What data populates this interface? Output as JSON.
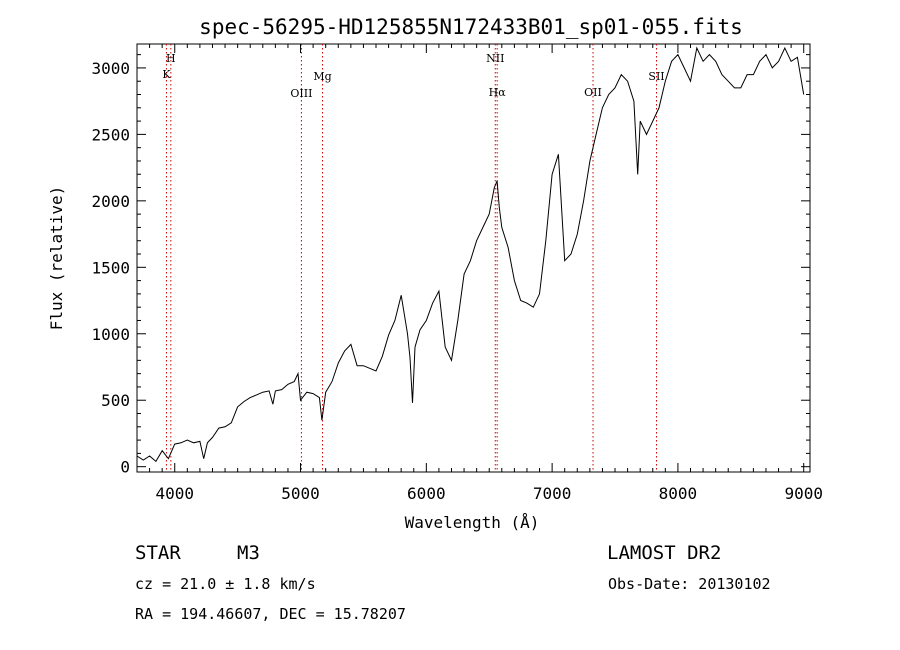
{
  "chart_data": {
    "type": "line",
    "title": "spec-56295-HD125855N172433B01_sp01-055.fits",
    "xlabel": "Wavelength (Å)",
    "ylabel": "Flux (relative)",
    "xlim": [
      3700,
      9050
    ],
    "ylim": [
      -40,
      3180
    ],
    "x_ticks": [
      4000,
      5000,
      6000,
      7000,
      8000,
      9000
    ],
    "y_ticks": [
      0,
      500,
      1000,
      1500,
      2000,
      2500,
      3000
    ],
    "series": [
      {
        "x": [
          3700,
          3750,
          3800,
          3850,
          3900,
          3950,
          4000,
          4050,
          4100,
          4150,
          4200,
          4230,
          4260,
          4300,
          4350,
          4400,
          4450,
          4500,
          4550,
          4600,
          4650,
          4700,
          4750,
          4780,
          4800,
          4850,
          4900,
          4950,
          4980,
          5000,
          5050,
          5100,
          5150,
          5170,
          5200,
          5250,
          5300,
          5350,
          5400,
          5450,
          5500,
          5550,
          5600,
          5650,
          5700,
          5750,
          5800,
          5850,
          5870,
          5890,
          5910,
          5950,
          6000,
          6050,
          6100,
          6150,
          6200,
          6250,
          6300,
          6350,
          6400,
          6450,
          6500,
          6540,
          6563,
          6580,
          6600,
          6650,
          6700,
          6750,
          6800,
          6850,
          6900,
          6950,
          7000,
          7050,
          7100,
          7150,
          7200,
          7250,
          7300,
          7350,
          7400,
          7450,
          7500,
          7550,
          7600,
          7650,
          7680,
          7700,
          7750,
          7800,
          7850,
          7900,
          7950,
          8000,
          8050,
          8100,
          8150,
          8200,
          8250,
          8300,
          8350,
          8400,
          8450,
          8500,
          8550,
          8600,
          8650,
          8700,
          8750,
          8800,
          8850,
          8900,
          8950,
          9000
        ],
        "values": [
          80,
          50,
          80,
          40,
          120,
          60,
          170,
          180,
          200,
          180,
          190,
          60,
          180,
          220,
          290,
          300,
          330,
          450,
          490,
          520,
          540,
          560,
          570,
          470,
          570,
          580,
          620,
          640,
          700,
          500,
          560,
          550,
          520,
          350,
          560,
          640,
          780,
          870,
          920,
          760,
          760,
          740,
          720,
          830,
          990,
          1100,
          1290,
          1000,
          820,
          480,
          900,
          1030,
          1100,
          1230,
          1320,
          900,
          800,
          1100,
          1450,
          1550,
          1700,
          1800,
          1900,
          2100,
          2150,
          1950,
          1800,
          1650,
          1400,
          1250,
          1230,
          1200,
          1300,
          1700,
          2200,
          2350,
          1550,
          1600,
          1750,
          2000,
          2300,
          2500,
          2700,
          2800,
          2850,
          2950,
          2900,
          2750,
          2200,
          2600,
          2500,
          2600,
          2700,
          2900,
          3050,
          3100,
          3000,
          2900,
          3150,
          3050,
          3100,
          3050,
          2950,
          2900,
          2850,
          2850,
          2950,
          2950,
          3050,
          3100,
          3000,
          3050,
          3150,
          3050,
          3080,
          2800
        ]
      }
    ],
    "lines": [
      {
        "name": "K",
        "x": 3934,
        "color": "#d00000"
      },
      {
        "name": "H",
        "x": 3969,
        "color": "#d00000"
      },
      {
        "name": "OIII",
        "x": 5007,
        "color": "#d00000"
      },
      {
        "name": "Mg",
        "x": 5175,
        "color": "#d00000"
      },
      {
        "name": "NII",
        "x": 6548,
        "color": "#d00000"
      },
      {
        "name": "Hα",
        "x": 6563,
        "color": "#d00000"
      },
      {
        "name": "OII",
        "x": 7325,
        "color": "#d00000"
      },
      {
        "name": "SII",
        "x": 7830,
        "color": "#d00000"
      }
    ],
    "grid": false,
    "line_color": "#000000"
  },
  "info": {
    "class": "STAR",
    "subclass": "M3",
    "survey": "LAMOST DR2",
    "cz": "cz = 21.0 ± 1.8 km/s",
    "obs_date": "Obs-Date: 20130102",
    "coords": "RA = 194.46607, DEC =  15.78207"
  }
}
